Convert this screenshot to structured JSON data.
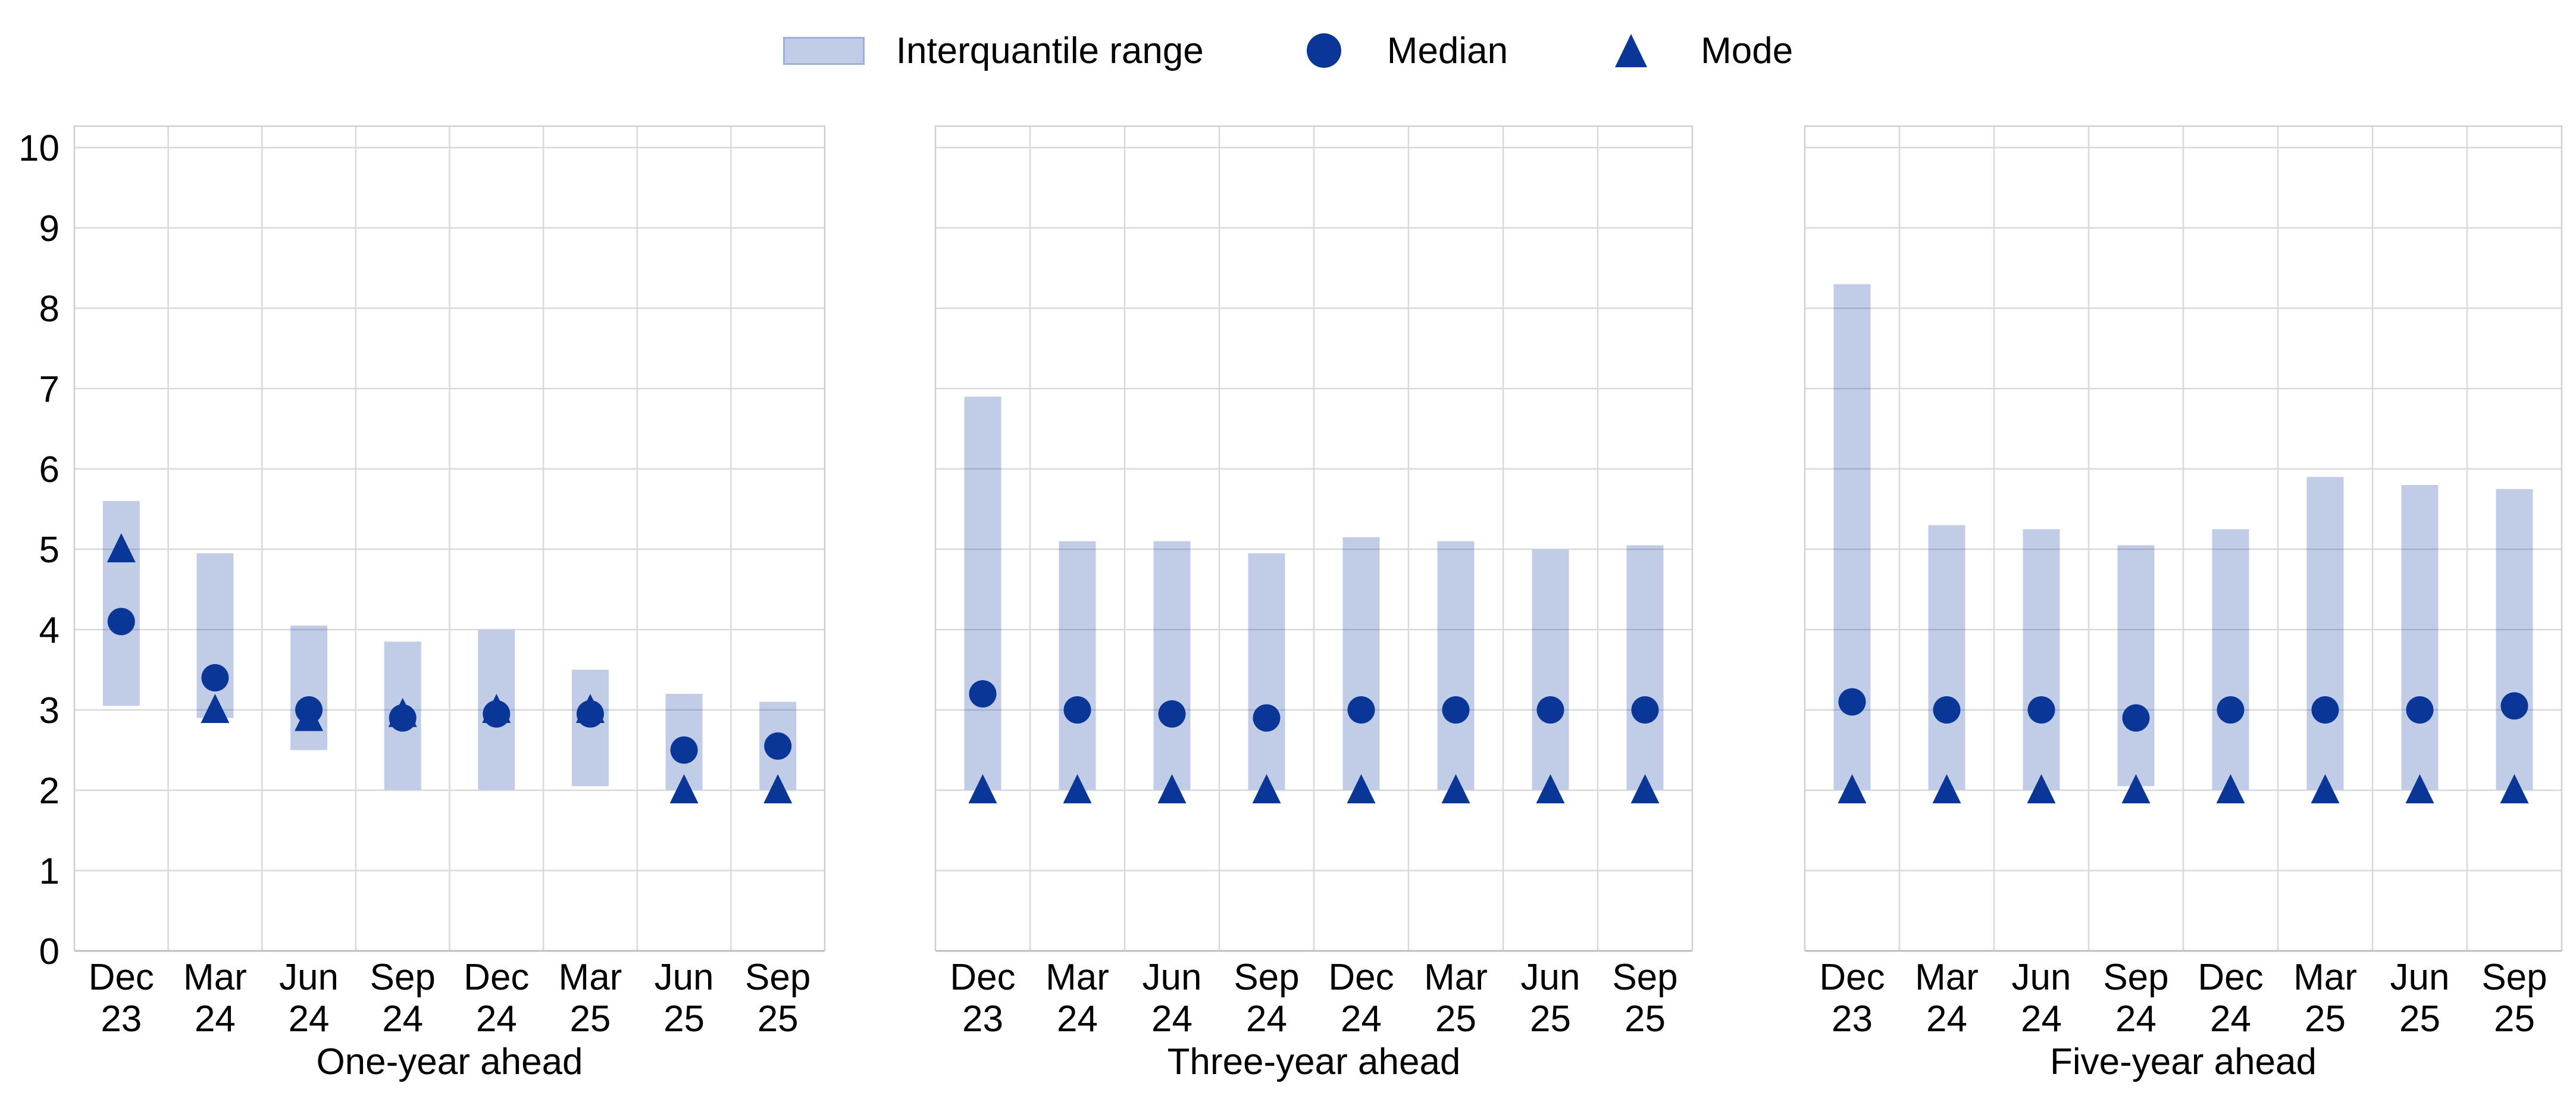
{
  "page": {
    "background": "#ffffff"
  },
  "legend": {
    "items": [
      {
        "id": "iqr",
        "label": "Interquantile range",
        "marker": "rect",
        "fill": "#c1cce6",
        "border": "#9fb0d8"
      },
      {
        "id": "median",
        "label": "Median",
        "marker": "circle",
        "color": "#0a3697"
      },
      {
        "id": "mode",
        "label": "Mode",
        "marker": "triangle",
        "color": "#0a3697"
      }
    ]
  },
  "chart_data": {
    "type": "bar",
    "subtype": "interquantile-range-columns-with-median-circle-and-mode-triangle",
    "title": "",
    "ylabel": "",
    "ylim": [
      0,
      10
    ],
    "yticks": [
      "0",
      "1",
      "2",
      "3",
      "4",
      "5",
      "6",
      "7",
      "8",
      "9",
      "10"
    ],
    "grid": true,
    "legend_position": "top-center",
    "colors": {
      "iqr_fill": "#c1cce6",
      "marker": "#0a3697",
      "gridline": "#d9d9d9",
      "frame": "#cfcfcf",
      "axis_line": "#bfbfbf",
      "text": "#000000"
    },
    "categories": [
      [
        "Dec",
        "23"
      ],
      [
        "Mar",
        "24"
      ],
      [
        "Jun",
        "24"
      ],
      [
        "Sep",
        "24"
      ],
      [
        "Dec",
        "24"
      ],
      [
        "Mar",
        "25"
      ],
      [
        "Jun",
        "25"
      ],
      [
        "Sep",
        "25"
      ]
    ],
    "panels": [
      {
        "xlabel": "One-year ahead",
        "iqr_low": [
          3.05,
          2.9,
          2.5,
          2.0,
          2.0,
          2.05,
          2.0,
          2.0
        ],
        "iqr_high": [
          5.6,
          4.95,
          4.05,
          3.85,
          4.0,
          3.5,
          3.2,
          3.1
        ],
        "median": [
          4.1,
          3.4,
          3.0,
          2.9,
          2.95,
          2.95,
          2.5,
          2.55
        ],
        "mode": [
          5.0,
          3.0,
          2.9,
          2.95,
          3.0,
          3.0,
          2.0,
          2.0
        ]
      },
      {
        "xlabel": "Three-year ahead",
        "iqr_low": [
          2.0,
          2.0,
          2.0,
          2.0,
          2.0,
          2.0,
          2.0,
          2.0
        ],
        "iqr_high": [
          6.9,
          5.1,
          5.1,
          4.95,
          5.15,
          5.1,
          5.0,
          5.05
        ],
        "median": [
          3.2,
          3.0,
          2.95,
          2.9,
          3.0,
          3.0,
          3.0,
          3.0
        ],
        "mode": [
          2.0,
          2.0,
          2.0,
          2.0,
          2.0,
          2.0,
          2.0,
          2.0
        ]
      },
      {
        "xlabel": "Five-year ahead",
        "iqr_low": [
          2.0,
          2.0,
          2.0,
          2.05,
          2.0,
          2.0,
          2.0,
          2.0
        ],
        "iqr_high": [
          8.3,
          5.3,
          5.25,
          5.05,
          5.25,
          5.9,
          5.8,
          5.75
        ],
        "median": [
          3.1,
          3.0,
          3.0,
          2.9,
          3.0,
          3.0,
          3.0,
          3.05
        ],
        "mode": [
          2.0,
          2.0,
          2.0,
          2.0,
          2.0,
          2.0,
          2.0,
          2.0
        ]
      }
    ]
  }
}
